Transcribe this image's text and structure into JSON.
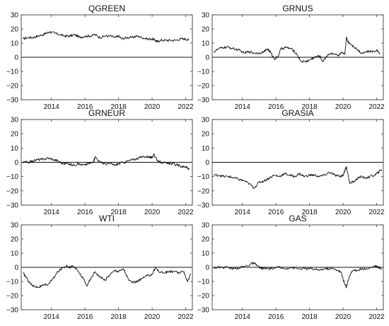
{
  "chart_data": [
    {
      "type": "line",
      "title": "QGREEN",
      "xlabel": "",
      "ylabel": "",
      "xlim": [
        2012.2,
        2022.4
      ],
      "ylim": [
        -30,
        30
      ],
      "yticks": [
        "30",
        "20",
        "10",
        "0",
        "−10",
        "−20",
        "−30"
      ],
      "xticks": [
        "2014",
        "2016",
        "2018",
        "2020",
        "2022"
      ],
      "zero_line": true,
      "grid": false,
      "x": [
        2012.3,
        2012.6,
        2012.9,
        2013.2,
        2013.5,
        2013.7,
        2013.9,
        2014.2,
        2014.5,
        2014.8,
        2015.1,
        2015.4,
        2015.7,
        2016.0,
        2016.3,
        2016.6,
        2016.9,
        2017.2,
        2017.5,
        2017.8,
        2018.0,
        2018.2,
        2018.5,
        2018.8,
        2019.1,
        2019.4,
        2019.7,
        2020.0,
        2020.2,
        2020.3,
        2020.5,
        2020.8,
        2021.1,
        2021.4,
        2021.7,
        2022.0,
        2022.2
      ],
      "values": [
        13,
        14,
        14,
        15,
        16,
        17,
        18,
        17,
        16,
        15,
        15,
        16,
        14,
        15,
        15,
        16,
        14,
        15,
        15,
        14,
        15,
        13,
        14,
        14,
        15,
        14,
        13,
        13,
        12,
        11,
        12,
        12,
        12,
        12,
        13,
        13,
        12
      ]
    },
    {
      "type": "line",
      "title": "GRNUS",
      "xlabel": "",
      "ylabel": "",
      "xlim": [
        2012.2,
        2022.4
      ],
      "ylim": [
        -30,
        30
      ],
      "yticks": [
        "30",
        "20",
        "10",
        "0",
        "−10",
        "−20",
        "−30"
      ],
      "xticks": [
        "2014",
        "2016",
        "2018",
        "2020",
        "2022"
      ],
      "zero_line": true,
      "grid": false,
      "x": [
        2012.3,
        2012.6,
        2012.9,
        2013.2,
        2013.5,
        2013.8,
        2014.1,
        2014.4,
        2014.7,
        2015.0,
        2015.3,
        2015.5,
        2015.7,
        2015.9,
        2016.1,
        2016.3,
        2016.6,
        2016.9,
        2017.2,
        2017.5,
        2017.8,
        2018.0,
        2018.3,
        2018.6,
        2018.8,
        2019.1,
        2019.4,
        2019.7,
        2019.9,
        2020.1,
        2020.2,
        2020.3,
        2020.5,
        2020.8,
        2021.1,
        2021.4,
        2021.7,
        2022.0,
        2022.2
      ],
      "values": [
        4,
        6,
        7,
        7,
        6,
        5,
        3,
        4,
        3,
        3,
        4,
        6,
        3,
        -1,
        0,
        6,
        7,
        6,
        3,
        -3,
        -3,
        -2,
        0,
        1,
        -3,
        2,
        3,
        1,
        3,
        2,
        14,
        11,
        9,
        6,
        3,
        4,
        4,
        5,
        3
      ]
    },
    {
      "type": "line",
      "title": "GRNEUR",
      "xlabel": "",
      "ylabel": "",
      "xlim": [
        2012.2,
        2022.4
      ],
      "ylim": [
        -30,
        30
      ],
      "yticks": [
        "30",
        "20",
        "10",
        "0",
        "−10",
        "−20",
        "−30"
      ],
      "xticks": [
        "2014",
        "2016",
        "2018",
        "2020",
        "2022"
      ],
      "zero_line": true,
      "grid": false,
      "x": [
        2012.3,
        2012.6,
        2012.9,
        2013.2,
        2013.5,
        2013.8,
        2014.1,
        2014.4,
        2014.7,
        2015.0,
        2015.3,
        2015.6,
        2015.9,
        2016.2,
        2016.5,
        2016.6,
        2016.9,
        2017.2,
        2017.5,
        2017.8,
        2018.0,
        2018.3,
        2018.6,
        2018.9,
        2019.2,
        2019.5,
        2019.8,
        2020.0,
        2020.1,
        2020.3,
        2020.6,
        2020.9,
        2021.2,
        2021.5,
        2021.8,
        2022.0,
        2022.2
      ],
      "values": [
        0,
        0,
        1,
        2,
        2,
        3,
        2,
        1,
        -1,
        -1,
        -2,
        -1,
        -2,
        -1,
        0,
        4,
        0,
        -1,
        -1,
        -2,
        -1,
        0,
        1,
        2,
        3,
        4,
        4,
        3,
        6,
        1,
        0,
        -1,
        -1,
        -2,
        -3,
        -3,
        -5
      ]
    },
    {
      "type": "line",
      "title": "GRASIA",
      "xlabel": "",
      "ylabel": "",
      "xlim": [
        2012.2,
        2022.4
      ],
      "ylim": [
        -30,
        30
      ],
      "yticks": [
        "30",
        "20",
        "10",
        "0",
        "−10",
        "−20",
        "−30"
      ],
      "xticks": [
        "2014",
        "2016",
        "2018",
        "2020",
        "2022"
      ],
      "zero_line": true,
      "grid": false,
      "x": [
        2012.3,
        2012.6,
        2012.9,
        2013.2,
        2013.5,
        2013.8,
        2014.1,
        2014.4,
        2014.7,
        2015.0,
        2015.3,
        2015.6,
        2015.9,
        2016.2,
        2016.5,
        2016.8,
        2017.1,
        2017.4,
        2017.7,
        2018.0,
        2018.3,
        2018.6,
        2018.9,
        2019.2,
        2019.5,
        2019.8,
        2020.0,
        2020.1,
        2020.2,
        2020.4,
        2020.7,
        2021.0,
        2021.3,
        2021.6,
        2021.9,
        2022.1,
        2022.3
      ],
      "values": [
        -9,
        -9,
        -10,
        -10,
        -11,
        -12,
        -13,
        -15,
        -18,
        -14,
        -13,
        -11,
        -9,
        -10,
        -8,
        -9,
        -10,
        -8,
        -10,
        -9,
        -9,
        -10,
        -9,
        -7,
        -9,
        -10,
        -9,
        -6,
        -3,
        -15,
        -13,
        -10,
        -11,
        -10,
        -9,
        -7,
        -5
      ]
    },
    {
      "type": "line",
      "title": "WTI",
      "xlabel": "",
      "ylabel": "",
      "xlim": [
        2012.2,
        2022.4
      ],
      "ylim": [
        -30,
        30
      ],
      "yticks": [
        "30",
        "20",
        "10",
        "0",
        "−10",
        "−20",
        "−30"
      ],
      "xticks": [
        "2014",
        "2016",
        "2018",
        "2020",
        "2022"
      ],
      "zero_line": true,
      "grid": false,
      "x": [
        2012.3,
        2012.5,
        2012.7,
        2012.9,
        2013.2,
        2013.5,
        2013.8,
        2014.1,
        2014.4,
        2014.7,
        2014.9,
        2015.1,
        2015.3,
        2015.6,
        2015.9,
        2016.1,
        2016.3,
        2016.6,
        2016.9,
        2017.2,
        2017.5,
        2017.8,
        2018.0,
        2018.3,
        2018.6,
        2018.9,
        2019.1,
        2019.4,
        2019.7,
        2020.0,
        2020.2,
        2020.4,
        2020.7,
        2021.0,
        2021.3,
        2021.6,
        2021.9,
        2022.1,
        2022.3
      ],
      "values": [
        -4,
        -7,
        -11,
        -13,
        -14,
        -13,
        -12,
        -8,
        -3,
        0,
        1,
        0,
        1,
        -3,
        -8,
        -13,
        -9,
        -3,
        -7,
        -9,
        -5,
        -2,
        -3,
        -1,
        -9,
        -11,
        -10,
        -8,
        -6,
        -5,
        0,
        -3,
        -4,
        -3,
        -3,
        -4,
        -3,
        -10,
        -5
      ]
    },
    {
      "type": "line",
      "title": "GAS",
      "xlabel": "",
      "ylabel": "",
      "xlim": [
        2012.2,
        2022.4
      ],
      "ylim": [
        -30,
        30
      ],
      "yticks": [
        "30",
        "20",
        "10",
        "0",
        "−10",
        "−20",
        "−30"
      ],
      "xticks": [
        "2014",
        "2016",
        "2018",
        "2020",
        "2022"
      ],
      "zero_line": true,
      "grid": false,
      "x": [
        2012.3,
        2012.7,
        2013.1,
        2013.5,
        2013.9,
        2014.3,
        2014.6,
        2014.8,
        2015.0,
        2015.3,
        2015.7,
        2016.1,
        2016.5,
        2016.9,
        2017.3,
        2017.7,
        2018.1,
        2018.5,
        2018.9,
        2019.3,
        2019.7,
        2019.9,
        2020.1,
        2020.2,
        2020.3,
        2020.5,
        2020.8,
        2021.1,
        2021.5,
        2021.9,
        2022.1,
        2022.3
      ],
      "values": [
        0,
        0,
        0,
        -1,
        0,
        1,
        3,
        2,
        0,
        -1,
        -1,
        0,
        -1,
        0,
        -1,
        -1,
        -1,
        -2,
        -1,
        -1,
        -2,
        -4,
        -12,
        -14,
        -9,
        -3,
        -2,
        -1,
        -1,
        1,
        0,
        -1
      ]
    }
  ]
}
